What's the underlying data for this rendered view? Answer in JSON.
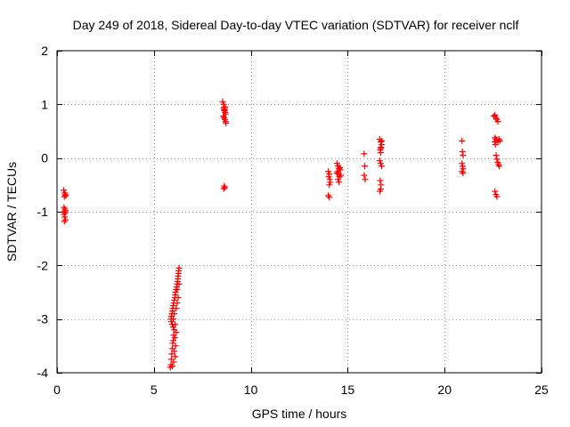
{
  "chart_data": {
    "type": "scatter",
    "title": "Day 249 of 2018, Sidereal Day-to-day VTEC variation (SDTVAR) for receiver nclf",
    "xlabel": "GPS time / hours",
    "ylabel": "SDTVAR / TECUs",
    "xlim": [
      0,
      25
    ],
    "ylim": [
      -4,
      2
    ],
    "xticks": [
      0,
      5,
      10,
      15,
      20,
      25
    ],
    "yticks": [
      -4,
      -3,
      -2,
      -1,
      0,
      1,
      2
    ],
    "grid": true,
    "marker": "+",
    "colors": {
      "series": "#ff0000",
      "grid": "#a0a0a0",
      "axes": "#000000"
    },
    "series": [
      {
        "name": "SDTVAR",
        "points": [
          [
            0.35,
            -0.6
          ],
          [
            0.4,
            -0.65
          ],
          [
            0.42,
            -0.68
          ],
          [
            0.45,
            -0.7
          ],
          [
            0.38,
            -0.72
          ],
          [
            0.36,
            -0.92
          ],
          [
            0.4,
            -0.95
          ],
          [
            0.44,
            -0.98
          ],
          [
            0.38,
            -1.0
          ],
          [
            0.42,
            -1.02
          ],
          [
            0.36,
            -1.05
          ],
          [
            0.4,
            -1.1
          ],
          [
            0.44,
            -1.15
          ],
          [
            0.38,
            -1.18
          ],
          [
            5.85,
            -3.9
          ],
          [
            5.88,
            -3.85
          ],
          [
            5.9,
            -3.75
          ],
          [
            5.92,
            -3.65
          ],
          [
            5.95,
            -3.55
          ],
          [
            5.97,
            -3.45
          ],
          [
            6.0,
            -3.4
          ],
          [
            6.02,
            -3.3
          ],
          [
            6.05,
            -3.2
          ],
          [
            6.0,
            -3.15
          ],
          [
            5.95,
            -3.1
          ],
          [
            5.9,
            -3.05
          ],
          [
            5.88,
            -3.0
          ],
          [
            5.9,
            -2.95
          ],
          [
            5.93,
            -2.9
          ],
          [
            5.95,
            -2.85
          ],
          [
            5.97,
            -2.8
          ],
          [
            6.0,
            -2.75
          ],
          [
            6.02,
            -2.7
          ],
          [
            6.05,
            -2.65
          ],
          [
            6.08,
            -2.6
          ],
          [
            6.1,
            -2.55
          ],
          [
            6.12,
            -2.5
          ],
          [
            6.15,
            -2.45
          ],
          [
            6.17,
            -2.4
          ],
          [
            6.2,
            -2.35
          ],
          [
            6.22,
            -2.3
          ],
          [
            6.24,
            -2.25
          ],
          [
            6.25,
            -2.2
          ],
          [
            6.27,
            -2.15
          ],
          [
            6.28,
            -2.1
          ],
          [
            6.3,
            -2.05
          ],
          [
            6.1,
            -3.7
          ],
          [
            6.05,
            -3.6
          ],
          [
            6.12,
            -3.5
          ],
          [
            6.08,
            -3.35
          ],
          [
            6.15,
            -3.25
          ],
          [
            6.1,
            -3.1
          ],
          [
            6.0,
            -3.0
          ],
          [
            6.05,
            -2.9
          ],
          [
            6.15,
            -2.8
          ],
          [
            6.2,
            -2.7
          ],
          [
            6.25,
            -2.6
          ],
          [
            6.2,
            -2.45
          ],
          [
            6.3,
            -2.35
          ],
          [
            5.95,
            -3.88
          ],
          [
            6.02,
            -3.8
          ],
          [
            8.55,
            1.05
          ],
          [
            8.6,
            1.0
          ],
          [
            8.62,
            0.95
          ],
          [
            8.65,
            0.9
          ],
          [
            8.68,
            0.85
          ],
          [
            8.7,
            0.82
          ],
          [
            8.58,
            0.78
          ],
          [
            8.62,
            0.75
          ],
          [
            8.66,
            0.72
          ],
          [
            8.7,
            0.68
          ],
          [
            8.72,
            0.65
          ],
          [
            8.6,
            0.92
          ],
          [
            8.64,
            0.88
          ],
          [
            8.68,
            0.95
          ],
          [
            8.63,
            -0.52
          ],
          [
            8.66,
            -0.55
          ],
          [
            8.6,
            -0.57
          ],
          [
            14.0,
            -0.25
          ],
          [
            14.05,
            -0.3
          ],
          [
            14.02,
            -0.35
          ],
          [
            14.08,
            -0.4
          ],
          [
            14.1,
            -0.45
          ],
          [
            14.05,
            -0.5
          ],
          [
            14.0,
            -0.7
          ],
          [
            14.05,
            -0.73
          ],
          [
            14.45,
            -0.1
          ],
          [
            14.5,
            -0.15
          ],
          [
            14.55,
            -0.2
          ],
          [
            14.48,
            -0.25
          ],
          [
            14.52,
            -0.3
          ],
          [
            14.58,
            -0.35
          ],
          [
            14.5,
            -0.4
          ],
          [
            14.55,
            -0.45
          ],
          [
            14.6,
            -0.18
          ],
          [
            14.62,
            -0.22
          ],
          [
            14.45,
            -0.28
          ],
          [
            14.65,
            -0.32
          ],
          [
            15.85,
            0.08
          ],
          [
            15.88,
            -0.15
          ],
          [
            15.85,
            -0.32
          ],
          [
            15.9,
            -0.4
          ],
          [
            16.65,
            0.35
          ],
          [
            16.7,
            0.3
          ],
          [
            16.75,
            0.25
          ],
          [
            16.72,
            0.2
          ],
          [
            16.68,
            0.15
          ],
          [
            16.7,
            0.1
          ],
          [
            16.65,
            -0.05
          ],
          [
            16.7,
            -0.1
          ],
          [
            16.75,
            -0.15
          ],
          [
            16.68,
            -0.42
          ],
          [
            16.72,
            -0.5
          ],
          [
            16.7,
            -0.58
          ],
          [
            16.66,
            -0.62
          ],
          [
            16.75,
            0.32
          ],
          [
            16.7,
            0.18
          ],
          [
            20.9,
            0.32
          ],
          [
            20.92,
            0.12
          ],
          [
            20.95,
            0.05
          ],
          [
            20.9,
            -0.1
          ],
          [
            20.93,
            -0.15
          ],
          [
            20.96,
            -0.2
          ],
          [
            20.9,
            -0.25
          ],
          [
            20.95,
            -0.28
          ],
          [
            22.55,
            0.78
          ],
          [
            22.6,
            0.8
          ],
          [
            22.65,
            0.75
          ],
          [
            22.7,
            0.72
          ],
          [
            22.75,
            0.68
          ],
          [
            22.6,
            0.38
          ],
          [
            22.65,
            0.35
          ],
          [
            22.7,
            0.33
          ],
          [
            22.75,
            0.3
          ],
          [
            22.8,
            0.35
          ],
          [
            22.85,
            0.32
          ],
          [
            22.58,
            0.3
          ],
          [
            22.62,
            0.25
          ],
          [
            22.66,
            0.05
          ],
          [
            22.7,
            -0.02
          ],
          [
            22.74,
            -0.08
          ],
          [
            22.78,
            -0.12
          ],
          [
            22.82,
            -0.15
          ],
          [
            22.6,
            -0.62
          ],
          [
            22.65,
            -0.68
          ],
          [
            22.7,
            -0.72
          ]
        ]
      }
    ]
  }
}
